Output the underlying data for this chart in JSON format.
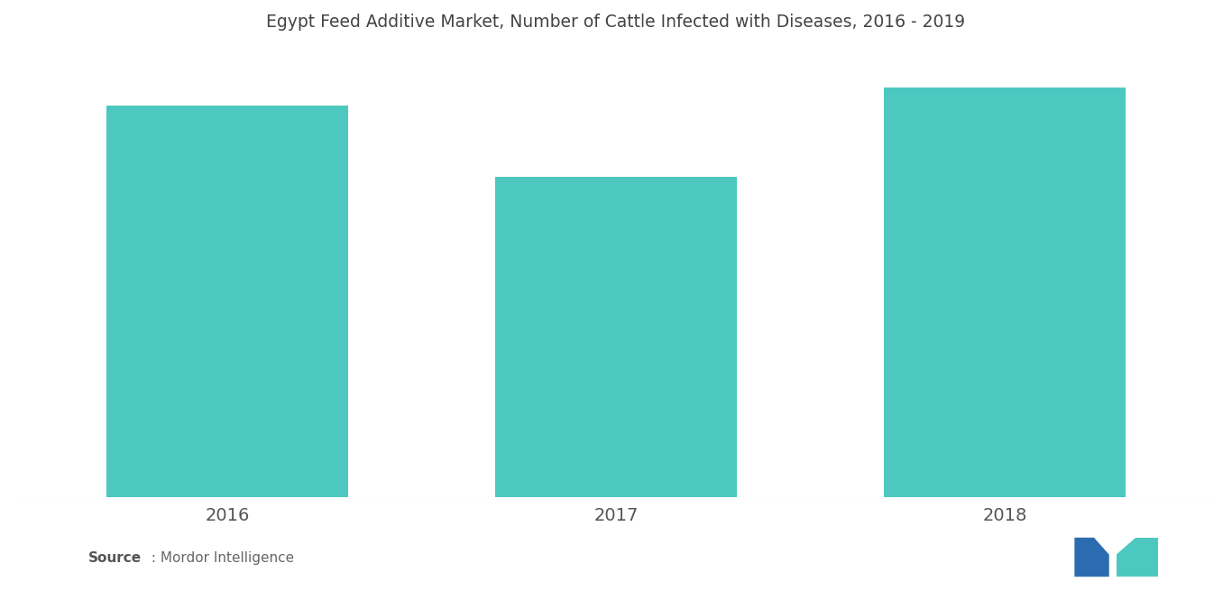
{
  "title": "Egypt Feed Additive Market, Number of Cattle Infected with Diseases, 2016 - 2019",
  "categories": [
    "2016",
    "2017",
    "2018"
  ],
  "values": [
    0.88,
    0.72,
    0.92
  ],
  "bar_color": "#4DC8C0",
  "background_color": "#ffffff",
  "title_fontsize": 13.5,
  "tick_fontsize": 14,
  "source_bold": "Source",
  "source_normal": " : Mordor Intelligence",
  "ylim": [
    0,
    1.0
  ],
  "bar_width": 0.62,
  "xlim": [
    -0.55,
    2.55
  ],
  "logo_dark_blue": "#2B6CB0",
  "logo_teal": "#4DC8C0"
}
